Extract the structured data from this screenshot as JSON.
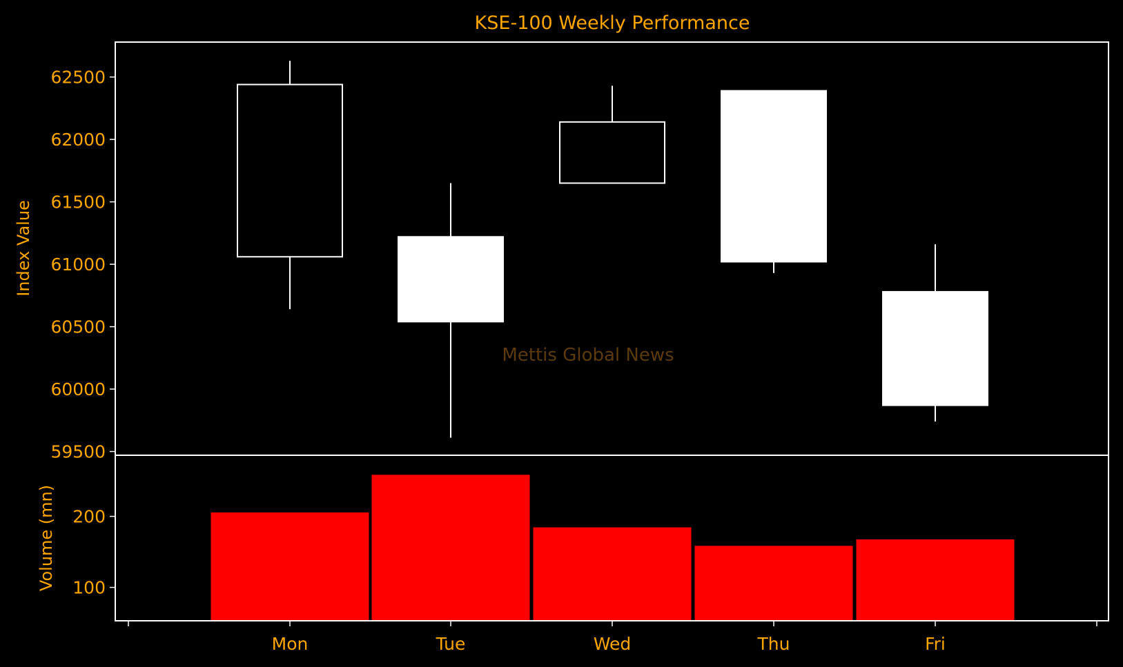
{
  "chart_data": [
    {
      "type": "candlestick",
      "title": "KSE-100 Weekly Performance",
      "ylabel": "Index Value",
      "xlabel": "",
      "categories": [
        "Mon",
        "Tue",
        "Wed",
        "Thu",
        "Fri"
      ],
      "open": [
        61060,
        61220,
        61650,
        62390,
        60780
      ],
      "high": [
        62630,
        61650,
        62430,
        62390,
        61160
      ],
      "low": [
        60640,
        59610,
        61650,
        60930,
        59740
      ],
      "close": [
        62440,
        60540,
        62140,
        61020,
        59870
      ],
      "ylim": [
        59470,
        62780
      ],
      "yticks": [
        59500,
        60000,
        60500,
        61000,
        61500,
        62000,
        62500
      ],
      "grid": false,
      "watermark": "Mettis Global News"
    },
    {
      "type": "bar",
      "ylabel": "Volume (mn)",
      "categories": [
        "Mon",
        "Tue",
        "Wed",
        "Thu",
        "Fri"
      ],
      "values": [
        206,
        259,
        185,
        159,
        168
      ],
      "ylim": [
        53,
        286
      ],
      "yticks": [
        100,
        200
      ],
      "bar_color": "#FF0000"
    }
  ],
  "colors": {
    "background": "#000000",
    "text": "#FFA500",
    "frame": "#FFFFFF",
    "candle": "#FFFFFF",
    "volume": "#FF0000",
    "watermark": "#5A3A0E"
  }
}
